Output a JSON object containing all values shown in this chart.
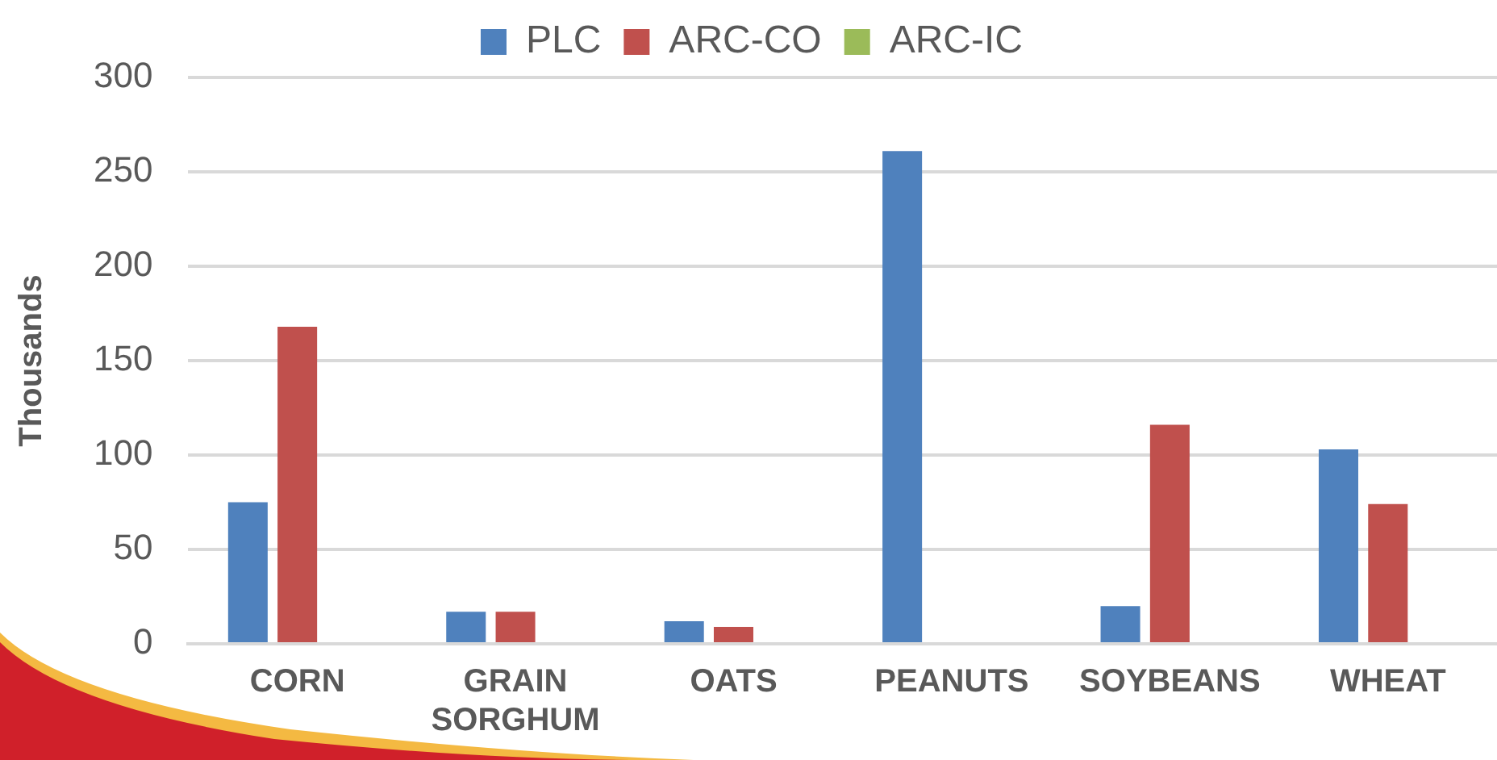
{
  "chart_data": {
    "type": "bar",
    "ylabel": "Thousands",
    "categories": [
      "CORN",
      "GRAIN SORGHUM",
      "OATS",
      "PEANUTS",
      "SOYBEANS",
      "WHEAT"
    ],
    "series": [
      {
        "name": "PLC",
        "color": "#4f81bd",
        "values": [
          75,
          17,
          12,
          261,
          20,
          103
        ]
      },
      {
        "name": "ARC-CO",
        "color": "#c0504d",
        "values": [
          168,
          17,
          9,
          0,
          116,
          74
        ]
      },
      {
        "name": "ARC-IC",
        "color": "#9bbb59",
        "values": [
          0,
          0,
          0,
          0,
          0,
          0
        ]
      }
    ],
    "ylim": [
      0,
      300
    ],
    "yticks": [
      0,
      50,
      100,
      150,
      200,
      250,
      300
    ],
    "grid": "y",
    "legend": "top"
  }
}
